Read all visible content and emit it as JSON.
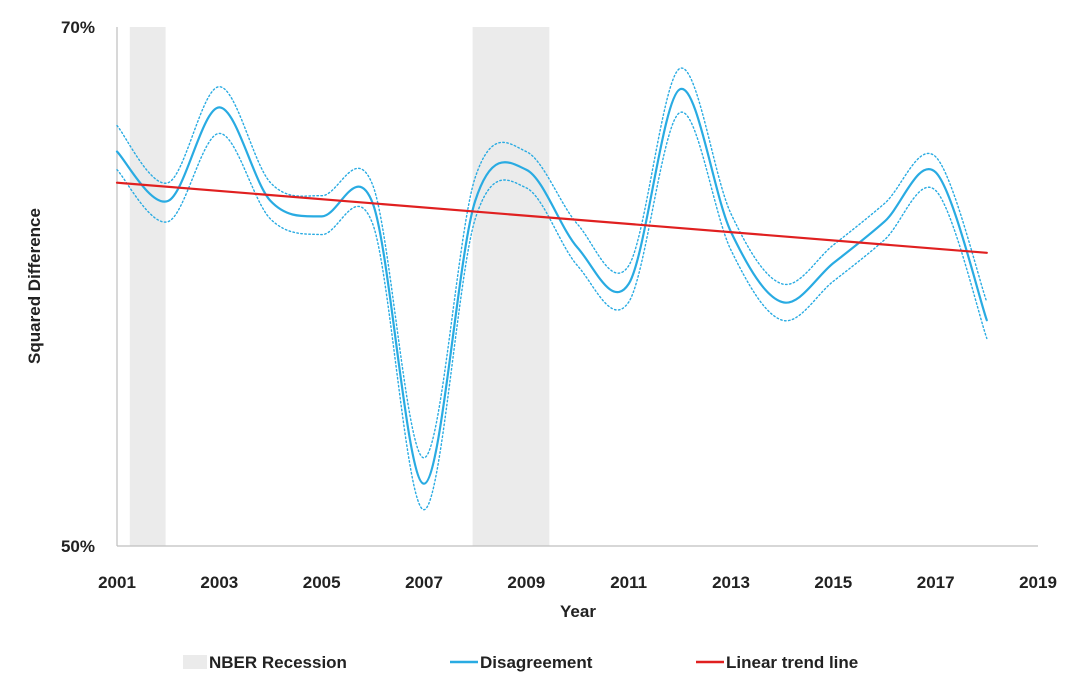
{
  "chart_data": {
    "type": "line",
    "title": "",
    "xlabel": "Year",
    "ylabel": "Squared Difference",
    "xlim": [
      2001,
      2019
    ],
    "ylim": [
      50,
      70
    ],
    "x_ticks": [
      "2001",
      "2003",
      "2005",
      "2007",
      "2009",
      "2011",
      "2013",
      "2015",
      "2017",
      "2019"
    ],
    "y_ticks": [
      {
        "value": 50,
        "label": "50%"
      },
      {
        "value": 70,
        "label": "70%"
      }
    ],
    "recessions": [
      {
        "start": 2001.25,
        "end": 2001.95
      },
      {
        "start": 2007.95,
        "end": 2009.45
      }
    ],
    "series": [
      {
        "name": "Disagreement",
        "style": "solid",
        "color": "#29abe2",
        "x": [
          2001,
          2002,
          2003,
          2004,
          2005,
          2006,
          2007,
          2008,
          2009,
          2010,
          2011,
          2012,
          2013,
          2014,
          2015,
          2016,
          2017,
          2018
        ],
        "values": [
          65.2,
          63.3,
          66.9,
          63.3,
          62.7,
          63.2,
          52.4,
          63.3,
          64.5,
          61.5,
          60.1,
          67.6,
          62.1,
          59.4,
          60.9,
          62.5,
          64.4,
          58.7
        ]
      },
      {
        "name": "Upper band",
        "style": "dotted",
        "color": "#29abe2",
        "x": [
          2001,
          2002,
          2003,
          2004,
          2005,
          2006,
          2007,
          2008,
          2009,
          2010,
          2011,
          2012,
          2013,
          2014,
          2015,
          2016,
          2017,
          2018
        ],
        "values": [
          66.2,
          64.0,
          67.7,
          64.0,
          63.5,
          63.9,
          53.4,
          64.2,
          65.2,
          62.4,
          60.8,
          68.4,
          62.8,
          60.1,
          61.6,
          63.2,
          65.0,
          59.4
        ]
      },
      {
        "name": "Lower band",
        "style": "dotted",
        "color": "#29abe2",
        "x": [
          2001,
          2002,
          2003,
          2004,
          2005,
          2006,
          2007,
          2008,
          2009,
          2010,
          2011,
          2012,
          2013,
          2014,
          2015,
          2016,
          2017,
          2018
        ],
        "values": [
          64.5,
          62.5,
          65.9,
          62.6,
          62.0,
          62.4,
          51.4,
          62.6,
          63.8,
          60.8,
          59.4,
          66.7,
          61.4,
          58.7,
          60.2,
          61.8,
          63.7,
          58.0
        ]
      },
      {
        "name": "Linear trend line",
        "style": "solid",
        "color": "#e02020",
        "x": [
          2001,
          2018
        ],
        "values": [
          64.0,
          61.3
        ]
      }
    ],
    "legend": {
      "position": "bottom",
      "entries": [
        {
          "label": "NBER Recession",
          "kind": "patch",
          "color": "#ebebeb"
        },
        {
          "label": "Disagreement",
          "kind": "line",
          "color": "#29abe2"
        },
        {
          "label": "Linear trend line",
          "kind": "line",
          "color": "#e02020"
        }
      ]
    }
  }
}
